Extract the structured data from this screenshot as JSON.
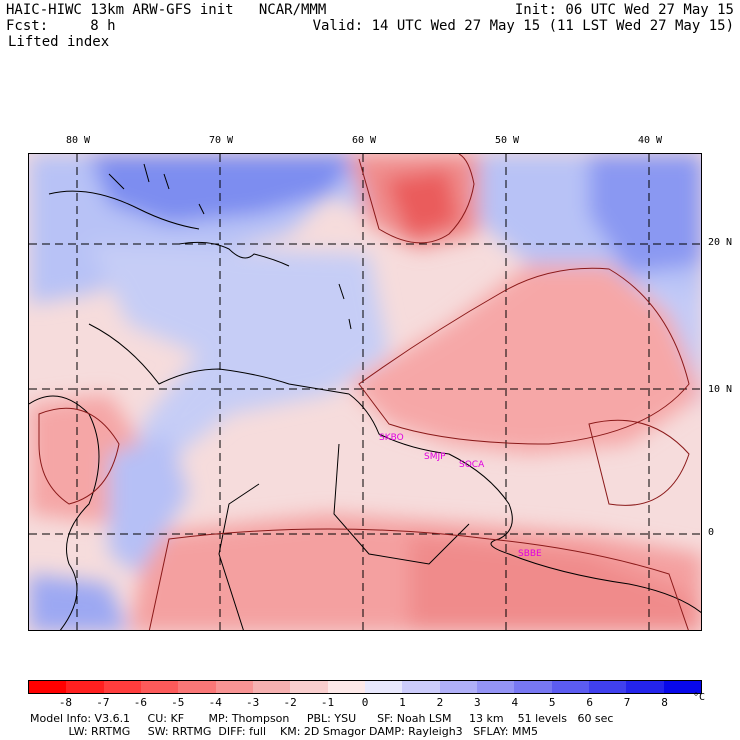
{
  "header": {
    "title_left": "HAIC-HIWC 13km ARW-GFS init   NCAR/MMM",
    "fcst_line": "Fcst:     8 h",
    "field": "Lifted index",
    "init_line": "Init: 06 UTC Wed 27 May 15",
    "valid_line": "Valid: 14 UTC Wed 27 May 15 (11 LST Wed 27 May 15)"
  },
  "map": {
    "lon_labels": [
      "80 W",
      "70 W",
      "60 W",
      "50 W",
      "40 W"
    ],
    "lat_labels": [
      "20 N",
      "10 N",
      "0"
    ],
    "stations": [
      "SKBO",
      "SMJP",
      "SOCA",
      "SBBE"
    ]
  },
  "colorbar": {
    "ticks": [
      "-8",
      "-7",
      "-6",
      "-5",
      "-4",
      "-3",
      "-2",
      "-1",
      "0",
      "1",
      "2",
      "3",
      "4",
      "5",
      "6",
      "7",
      "8"
    ],
    "unit": "°C",
    "colors": [
      "#ff0000",
      "#ff2020",
      "#ff3d3d",
      "#fd5a5a",
      "#fa7777",
      "#f89494",
      "#f6b1b1",
      "#f9cece",
      "#fde9e9",
      "#e8e8fd",
      "#ccccfb",
      "#b0b0f8",
      "#9494f6",
      "#7878f3",
      "#5c5cf1",
      "#4040ee",
      "#2424ec",
      "#0808ea"
    ]
  },
  "model_info": {
    "line1": "Model Info: V3.6.1     CU: KF       MP: Thompson     PBL: YSU      SF: Noah LSM     13 km    51 levels   60 sec",
    "line2": "           LW: RRTMG     SW: RRTMG  DIFF: full    KM: 2D Smagor DAMP: Rayleigh3   SFLAY: MM5"
  }
}
